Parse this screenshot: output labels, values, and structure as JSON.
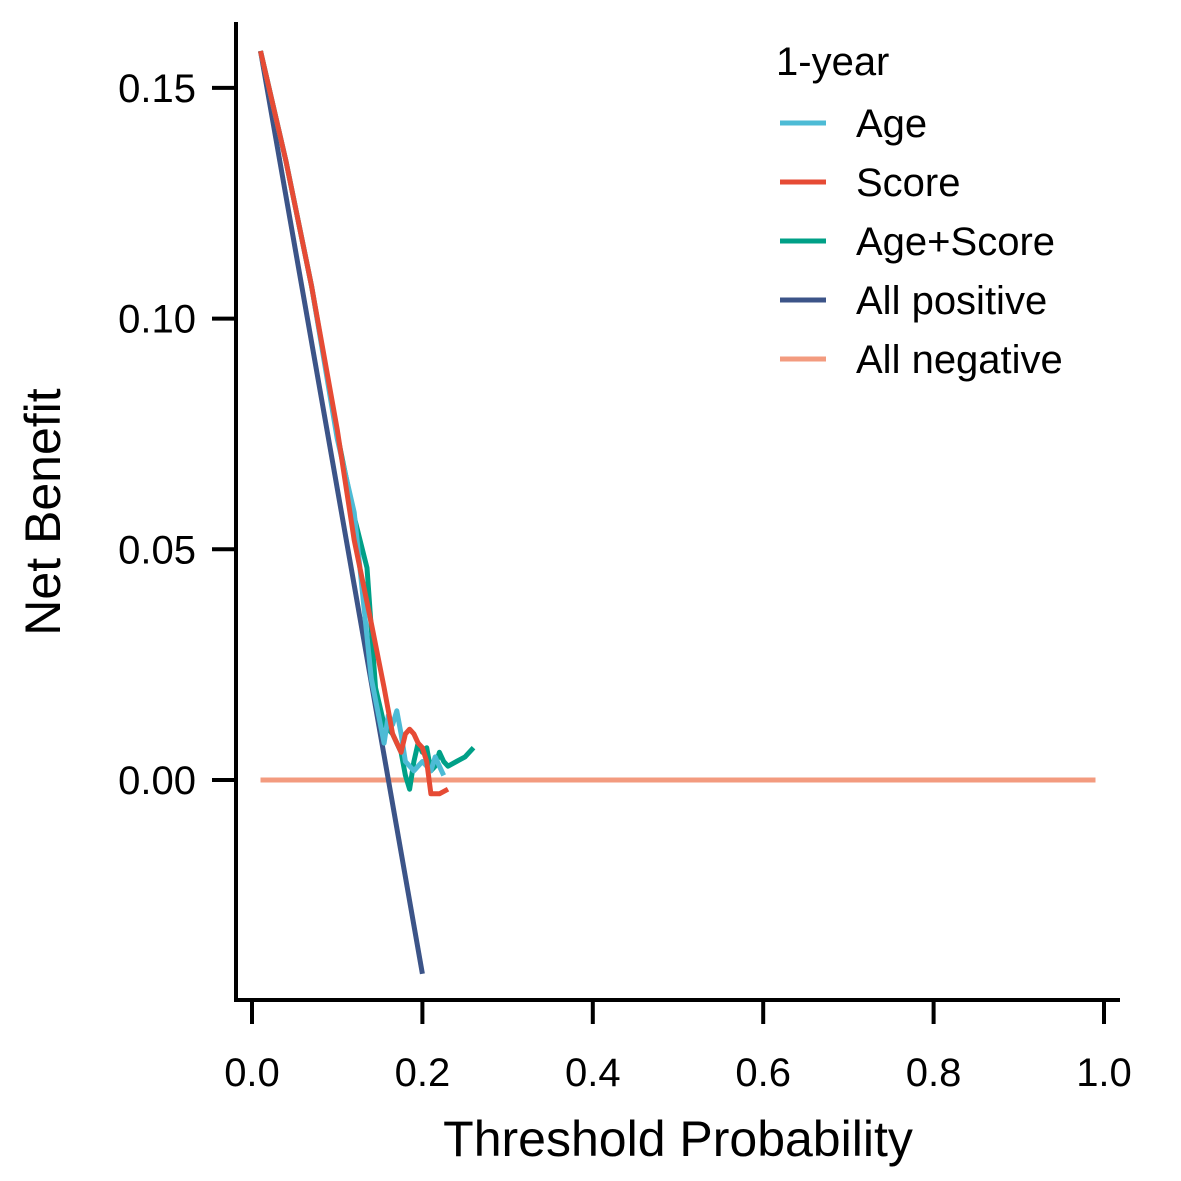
{
  "chart_data": {
    "type": "line",
    "title": "",
    "xlabel": "Threshold Probability",
    "ylabel": "Net Benefit",
    "xlim": [
      0.0,
      1.0
    ],
    "ylim": [
      -0.047,
      0.163
    ],
    "x_ticks": [
      0.0,
      0.2,
      0.4,
      0.6,
      0.8,
      1.0
    ],
    "x_tick_labels": [
      "0.0",
      "0.2",
      "0.4",
      "0.6",
      "0.8",
      "1.0"
    ],
    "y_ticks": [
      0.0,
      0.05,
      0.1,
      0.15
    ],
    "y_tick_labels": [
      "0.00",
      "0.05",
      "0.10",
      "0.15"
    ],
    "grid": false,
    "legend": {
      "title": "1-year",
      "placement": "top-right"
    },
    "series": [
      {
        "name": "Age",
        "color": "#4DBBD5",
        "points": [
          [
            0.01,
            0.158
          ],
          [
            0.04,
            0.134
          ],
          [
            0.07,
            0.107
          ],
          [
            0.1,
            0.074
          ],
          [
            0.12,
            0.058
          ],
          [
            0.14,
            0.022
          ],
          [
            0.155,
            0.008
          ],
          [
            0.16,
            0.014
          ],
          [
            0.165,
            0.012
          ],
          [
            0.17,
            0.015
          ],
          [
            0.175,
            0.01
          ],
          [
            0.18,
            0.004
          ],
          [
            0.19,
            0.002
          ],
          [
            0.2,
            0.004
          ],
          [
            0.21,
            0.002
          ],
          [
            0.215,
            0.005
          ],
          [
            0.22,
            0.003
          ],
          [
            0.225,
            0.001
          ]
        ]
      },
      {
        "name": "Score",
        "color": "#E64B35",
        "points": [
          [
            0.01,
            0.158
          ],
          [
            0.04,
            0.134
          ],
          [
            0.07,
            0.107
          ],
          [
            0.1,
            0.076
          ],
          [
            0.12,
            0.052
          ],
          [
            0.14,
            0.034
          ],
          [
            0.155,
            0.02
          ],
          [
            0.165,
            0.01
          ],
          [
            0.175,
            0.006
          ],
          [
            0.18,
            0.01
          ],
          [
            0.185,
            0.011
          ],
          [
            0.19,
            0.01
          ],
          [
            0.195,
            0.008
          ],
          [
            0.2,
            0.007
          ],
          [
            0.205,
            0.004
          ],
          [
            0.21,
            -0.003
          ],
          [
            0.22,
            -0.003
          ],
          [
            0.23,
            -0.002
          ]
        ]
      },
      {
        "name": "Age+Score",
        "color": "#00A087",
        "points": [
          [
            0.01,
            0.158
          ],
          [
            0.04,
            0.134
          ],
          [
            0.07,
            0.107
          ],
          [
            0.1,
            0.075
          ],
          [
            0.12,
            0.057
          ],
          [
            0.135,
            0.046
          ],
          [
            0.145,
            0.02
          ],
          [
            0.155,
            0.012
          ],
          [
            0.165,
            0.01
          ],
          [
            0.175,
            0.006
          ],
          [
            0.18,
            0.001
          ],
          [
            0.185,
            -0.002
          ],
          [
            0.19,
            0.004
          ],
          [
            0.195,
            0.008
          ],
          [
            0.2,
            0.006
          ],
          [
            0.205,
            0.007
          ],
          [
            0.21,
            0.002
          ],
          [
            0.215,
            0.003
          ],
          [
            0.22,
            0.006
          ],
          [
            0.225,
            0.004
          ],
          [
            0.23,
            0.003
          ],
          [
            0.24,
            0.004
          ],
          [
            0.25,
            0.005
          ],
          [
            0.26,
            0.007
          ]
        ]
      },
      {
        "name": "All positive",
        "color": "#3C5488",
        "points": [
          [
            0.01,
            0.158
          ],
          [
            0.2,
            -0.042
          ]
        ]
      },
      {
        "name": "All negative",
        "color": "#F39B7F",
        "points": [
          [
            0.01,
            0.0
          ],
          [
            0.99,
            0.0
          ]
        ]
      }
    ]
  }
}
